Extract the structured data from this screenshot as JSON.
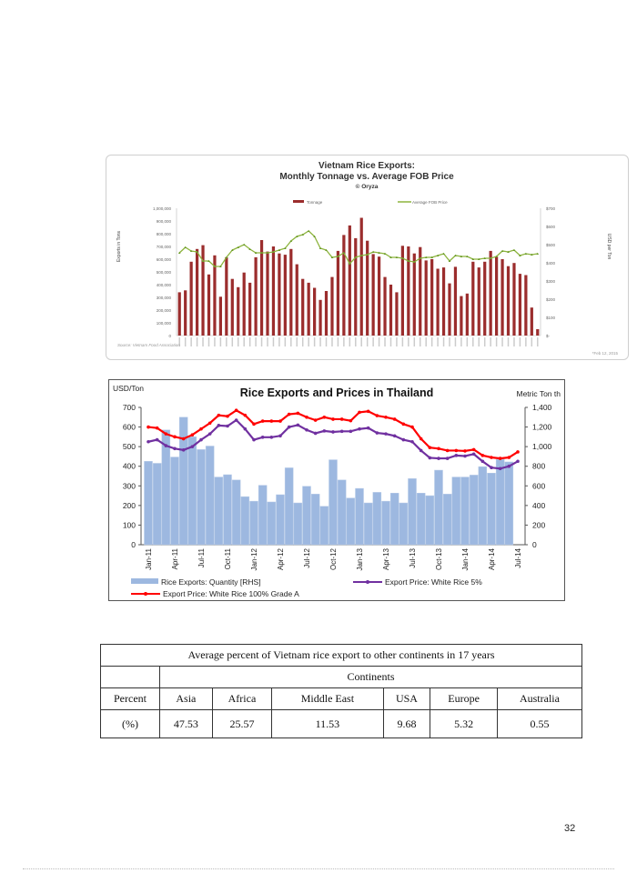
{
  "vietnam_chart": {
    "chart_data": {
      "type": "bar+line",
      "title_lines": [
        "Vietnam Rice Exports:",
        "Monthly Tonnage vs. Average FOB Price",
        "© Oryza"
      ],
      "ylabel_left": "Exports in Tons",
      "ylabel_right": "USD per Ton",
      "left_ticks": [
        "0",
        "100,000",
        "200,000",
        "300,000",
        "400,000",
        "500,000",
        "600,000",
        "700,000",
        "800,000",
        "900,000",
        "1,000,000"
      ],
      "right_ticks": [
        "$-",
        "$100",
        "$200",
        "$300",
        "$400",
        "$500",
        "$600",
        "$700"
      ],
      "ylim_left": [
        0,
        1000000
      ],
      "ylim_right": [
        0,
        700
      ],
      "legend_position": "top",
      "series": [
        {
          "name": "Tonnage",
          "type": "bar",
          "color": "#9b2d2d",
          "values": [
            340000,
            355000,
            580000,
            680000,
            710000,
            480000,
            630000,
            305000,
            615000,
            445000,
            380000,
            495000,
            415000,
            615000,
            750000,
            660000,
            700000,
            645000,
            635000,
            680000,
            560000,
            445000,
            415000,
            375000,
            280000,
            350000,
            460000,
            665000,
            790000,
            865000,
            765000,
            925000,
            745000,
            640000,
            620000,
            460000,
            400000,
            340000,
            705000,
            700000,
            645000,
            695000,
            590000,
            600000,
            525000,
            535000,
            410000,
            540000,
            310000,
            330000,
            580000,
            535000,
            580000,
            665000,
            620000,
            600000,
            545000,
            570000,
            485000,
            475000,
            220000,
            50000
          ]
        },
        {
          "name": "Average FOB Price",
          "type": "line",
          "color": "#8db43e",
          "values": [
            455,
            485,
            465,
            460,
            410,
            410,
            380,
            380,
            430,
            470,
            485,
            500,
            475,
            455,
            455,
            455,
            460,
            470,
            480,
            520,
            545,
            555,
            575,
            545,
            480,
            470,
            430,
            435,
            455,
            395,
            430,
            440,
            445,
            460,
            455,
            450,
            430,
            430,
            425,
            410,
            405,
            425,
            430,
            430,
            440,
            450,
            410,
            440,
            435,
            435,
            420,
            420,
            425,
            425,
            435,
            465,
            460,
            470,
            440,
            450,
            445,
            450
          ]
        }
      ],
      "source": "Source: Vietnam Food Association",
      "date_note": "*Feb 12, 2015"
    }
  },
  "thailand_chart": {
    "chart_data": {
      "type": "bar+line",
      "title": "Rice Exports and Prices in Thailand",
      "ylabel_left": "USD/Ton",
      "ylabel_right": "Metric Ton th",
      "ylim_left": [
        0,
        700
      ],
      "ylim_right": [
        0,
        1400
      ],
      "left_ticks": [
        "0",
        "100",
        "200",
        "300",
        "400",
        "500",
        "600",
        "700"
      ],
      "right_ticks": [
        "0",
        "200",
        "400",
        "600",
        "800",
        "1,000",
        "1,200",
        "1,400"
      ],
      "x_tick_labels": [
        "Jan-11",
        "Apr-11",
        "Jul-11",
        "Oct-11",
        "Jan-12",
        "Apr-12",
        "Jul-12",
        "Oct-12",
        "Jan-13",
        "Apr-13",
        "Jul-13",
        "Oct-13",
        "Jan-14",
        "Apr-14",
        "Jul-14"
      ],
      "legend_position": "bottom",
      "series": [
        {
          "name": "Rice Exports: Quantity [RHS]",
          "type": "bar",
          "axis": "right",
          "color": "#9db8e0",
          "values": [
            850,
            830,
            1170,
            894,
            1300,
            1100,
            970,
            1006,
            690,
            714,
            660,
            490,
            444,
            606,
            436,
            510,
            784,
            426,
            596,
            516,
            392,
            866,
            660,
            476,
            574,
            426,
            534,
            444,
            526,
            426,
            674,
            526,
            500,
            760,
            516,
            690,
            690,
            710,
            796,
            730,
            870,
            844,
            null
          ]
        },
        {
          "name": "Export Price: White Rice 5%",
          "type": "line",
          "axis": "left",
          "color": "#7030a0",
          "values": [
            525,
            535,
            505,
            490,
            483,
            500,
            535,
            565,
            608,
            605,
            635,
            590,
            535,
            548,
            548,
            555,
            600,
            610,
            585,
            568,
            580,
            575,
            578,
            578,
            590,
            595,
            570,
            565,
            555,
            535,
            525,
            480,
            443,
            440,
            440,
            455,
            452,
            462,
            425,
            393,
            388,
            400,
            425
          ]
        },
        {
          "name": "Export Price: White Rice 100% Grade A",
          "type": "line",
          "axis": "left",
          "color": "#ff0000",
          "values": [
            600,
            595,
            565,
            550,
            540,
            560,
            590,
            620,
            660,
            655,
            685,
            660,
            615,
            630,
            630,
            630,
            665,
            670,
            650,
            635,
            650,
            640,
            640,
            632,
            675,
            680,
            658,
            650,
            640,
            615,
            600,
            540,
            495,
            490,
            480,
            480,
            478,
            485,
            455,
            445,
            440,
            445,
            473
          ]
        }
      ]
    }
  },
  "table": {
    "title": "Average  percent  of Vietnam  rice  export  to other  continents  in  17 years",
    "group_header": "Continents",
    "row_label_1": "Percent",
    "row_label_2": "(%)",
    "columns": [
      "Asia",
      "Africa",
      "Middle  East",
      "USA",
      "Europe",
      "Australia"
    ],
    "values": [
      "47.53",
      "25.57",
      "11.53",
      "9.68",
      "5.32",
      "0.55"
    ]
  },
  "page_number": "32"
}
